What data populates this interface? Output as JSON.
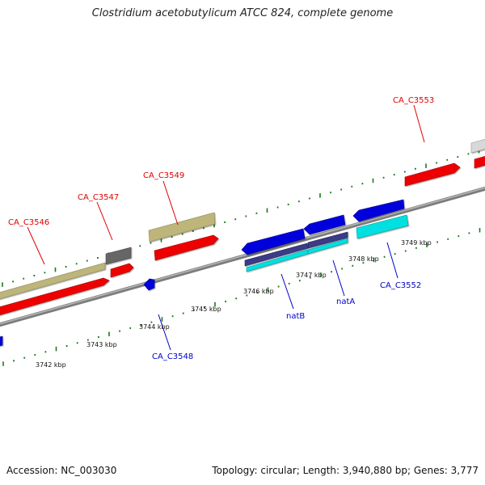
{
  "title": "Clostridium acetobutylicum ATCC 824, complete genome",
  "footer": {
    "accession": "Accession: NC_003030",
    "topology": "Topology: circular; Length: 3,940,880 bp; Genes: 3,777"
  },
  "colors": {
    "backbone": "#8a8a8a",
    "tick": "#1a7a1a",
    "label_top": "#e00000",
    "label_bottom": "#0000cc",
    "red_gene": "#ee0000",
    "olive_gene": "#bdb57a",
    "grey_gene": "#666666",
    "blue_gene": "#0000dd",
    "navy_gene": "#3a3a88",
    "cyan_gene": "#00e0e0"
  },
  "scale_labels": [
    "3742 kbp",
    "3743 kbp",
    "3744 kbp",
    "3745 kbp",
    "3746 kbp",
    "3747 kbp",
    "3748 kbp",
    "3749 kbp"
  ],
  "top_labels": [
    "CA_C3546",
    "CA_C3547",
    "CA_C3549",
    "CA_C3553"
  ],
  "bottom_labels": [
    "CA_C3548",
    "natB",
    "natA",
    "CA_C3552"
  ]
}
